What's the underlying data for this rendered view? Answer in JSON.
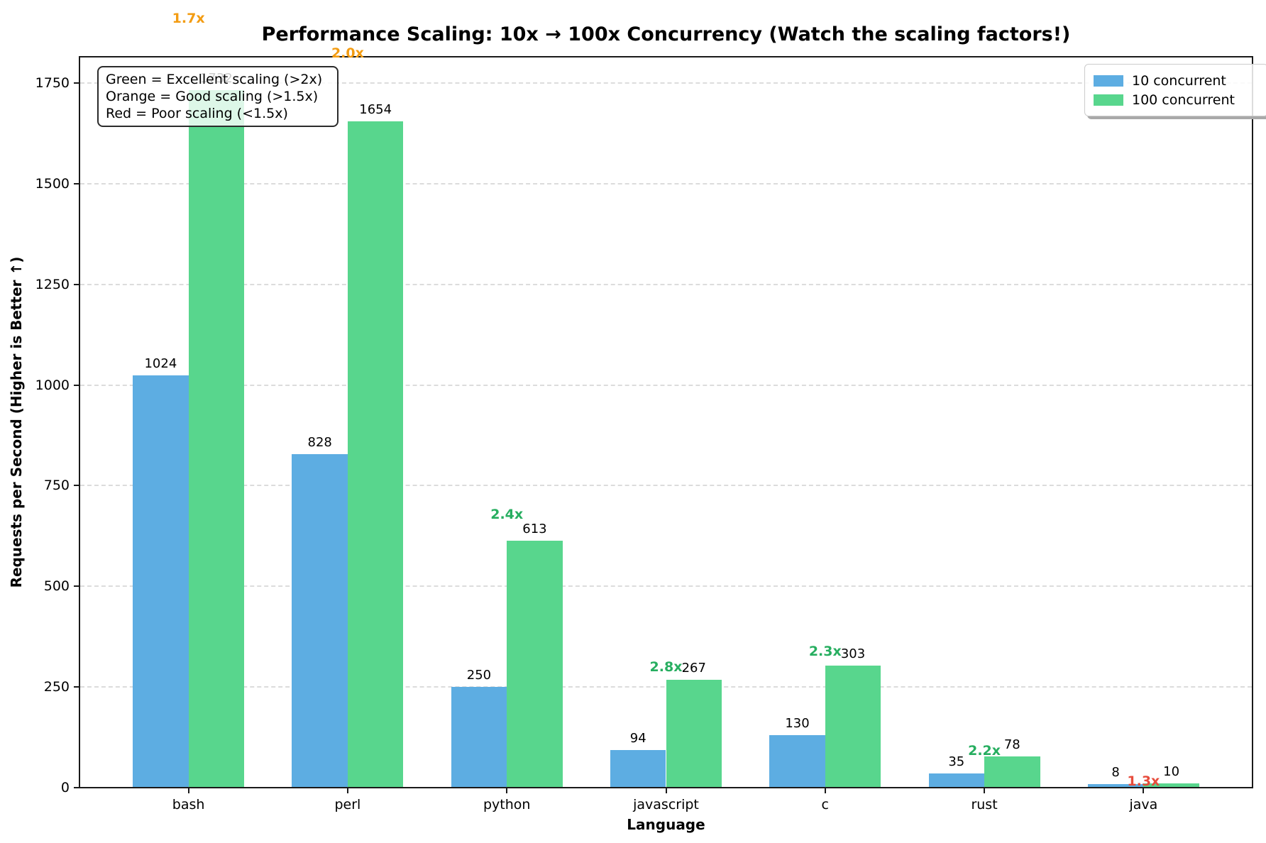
{
  "title": "Performance Scaling: 10x → 100x Concurrency (Watch the scaling factors!)",
  "annotation_box": {
    "lines": [
      "Green = Excellent scaling (>2x)",
      "Orange = Good scaling (>1.5x)",
      "Red = Poor scaling (<1.5x)"
    ]
  },
  "legend": {
    "position": "upper right",
    "items": [
      {
        "label": "10 concurrent",
        "color": "#5DADE2"
      },
      {
        "label": "100 concurrent",
        "color": "#58D68D"
      }
    ]
  },
  "chart_data": {
    "type": "bar",
    "title": "Performance Scaling: 10x → 100x Concurrency (Watch the scaling factors!)",
    "xlabel": "Language",
    "ylabel": "Requests per Second (Higher is Better ↑)",
    "categories": [
      "bash",
      "perl",
      "python",
      "javascript",
      "c",
      "rust",
      "java"
    ],
    "series": [
      {
        "name": "10 concurrent",
        "color": "#5DADE2",
        "values": [
          1024,
          828,
          250,
          94,
          130,
          35,
          8
        ]
      },
      {
        "name": "100 concurrent",
        "color": "#58D68D",
        "values": [
          1732,
          1654,
          613,
          267,
          303,
          78,
          10
        ]
      }
    ],
    "scaling_factors": [
      {
        "category": "bash",
        "text": "1.7x",
        "color": "#F39C12"
      },
      {
        "category": "perl",
        "text": "2.0x",
        "color": "#F39C12"
      },
      {
        "category": "python",
        "text": "2.4x",
        "color": "#27AE60"
      },
      {
        "category": "javascript",
        "text": "2.8x",
        "color": "#27AE60"
      },
      {
        "category": "c",
        "text": "2.3x",
        "color": "#27AE60"
      },
      {
        "category": "rust",
        "text": "2.2x",
        "color": "#27AE60"
      },
      {
        "category": "java",
        "text": "1.3x",
        "color": "#E74C3C"
      }
    ],
    "yticks": [
      0,
      250,
      500,
      750,
      1000,
      1250,
      1500,
      1750
    ],
    "ylim": [
      0,
      1815
    ],
    "grid": "horizontal-dashed",
    "legend_position": "upper right"
  }
}
